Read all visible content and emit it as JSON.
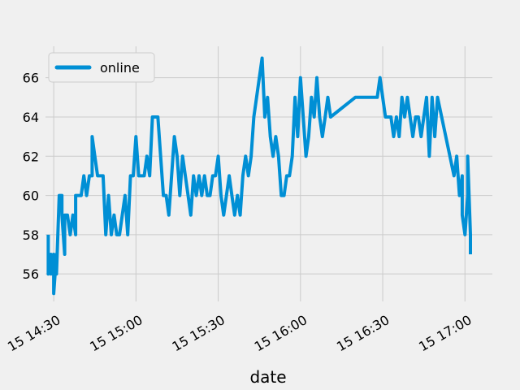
{
  "chart_data": {
    "type": "line",
    "title": "",
    "xlabel": "date",
    "ylabel": "",
    "x_type": "datetime",
    "x_tick_labels": [
      "15 14:30",
      "15 15:00",
      "15 15:30",
      "15 16:00",
      "15 16:30",
      "15 17:00"
    ],
    "x_ticks": [
      "14:30",
      "15:00",
      "15:30",
      "16:00",
      "16:30",
      "17:00"
    ],
    "xlim": [
      "14:27",
      "17:10"
    ],
    "y_ticks": [
      56,
      58,
      60,
      62,
      64,
      66
    ],
    "ylim": [
      54.6,
      67.6
    ],
    "grid": true,
    "legend": {
      "position": "top-left"
    },
    "colors": {
      "online": "#008fd5",
      "background": "#f0f0f0",
      "grid": "#cbcbcb"
    },
    "series": [
      {
        "name": "online",
        "points": [
          [
            "14:28",
            58
          ],
          [
            "14:28",
            56
          ],
          [
            "14:29",
            57
          ],
          [
            "14:29",
            56
          ],
          [
            "14:30",
            57
          ],
          [
            "14:30",
            55
          ],
          [
            "14:31",
            57
          ],
          [
            "14:31",
            56
          ],
          [
            "14:32",
            60
          ],
          [
            "14:33",
            60
          ],
          [
            "14:33",
            59
          ],
          [
            "14:34",
            57
          ],
          [
            "14:34",
            59
          ],
          [
            "14:35",
            59
          ],
          [
            "14:36",
            58
          ],
          [
            "14:37",
            59
          ],
          [
            "14:38",
            58
          ],
          [
            "14:38",
            60
          ],
          [
            "14:40",
            60
          ],
          [
            "14:41",
            61
          ],
          [
            "14:42",
            60
          ],
          [
            "14:43",
            61
          ],
          [
            "14:44",
            61
          ],
          [
            "14:44",
            63
          ],
          [
            "14:45",
            62
          ],
          [
            "14:46",
            61
          ],
          [
            "14:48",
            61
          ],
          [
            "14:49",
            58
          ],
          [
            "14:50",
            60
          ],
          [
            "14:51",
            58
          ],
          [
            "14:52",
            59
          ],
          [
            "14:53",
            58
          ],
          [
            "14:54",
            58
          ],
          [
            "14:55",
            59
          ],
          [
            "14:56",
            60
          ],
          [
            "14:57",
            58
          ],
          [
            "14:58",
            61
          ],
          [
            "14:59",
            61
          ],
          [
            "15:00",
            63
          ],
          [
            "15:01",
            61
          ],
          [
            "15:03",
            61
          ],
          [
            "15:04",
            62
          ],
          [
            "15:05",
            61
          ],
          [
            "15:06",
            64
          ],
          [
            "15:08",
            64
          ],
          [
            "15:09",
            62
          ],
          [
            "15:10",
            60
          ],
          [
            "15:11",
            60
          ],
          [
            "15:12",
            59
          ],
          [
            "15:13",
            61
          ],
          [
            "15:14",
            63
          ],
          [
            "15:15",
            62
          ],
          [
            "15:16",
            60
          ],
          [
            "15:17",
            62
          ],
          [
            "15:18",
            61
          ],
          [
            "15:19",
            60
          ],
          [
            "15:20",
            59
          ],
          [
            "15:21",
            61
          ],
          [
            "15:22",
            60
          ],
          [
            "15:23",
            61
          ],
          [
            "15:24",
            60
          ],
          [
            "15:25",
            61
          ],
          [
            "15:26",
            60
          ],
          [
            "15:27",
            60
          ],
          [
            "15:28",
            61
          ],
          [
            "15:29",
            61
          ],
          [
            "15:30",
            62
          ],
          [
            "15:31",
            60
          ],
          [
            "15:32",
            59
          ],
          [
            "15:33",
            60
          ],
          [
            "15:34",
            61
          ],
          [
            "15:35",
            60
          ],
          [
            "15:36",
            59
          ],
          [
            "15:37",
            60
          ],
          [
            "15:38",
            59
          ],
          [
            "15:39",
            61
          ],
          [
            "15:40",
            62
          ],
          [
            "15:41",
            61
          ],
          [
            "15:42",
            62
          ],
          [
            "15:43",
            64
          ],
          [
            "15:44",
            65
          ],
          [
            "15:45",
            66
          ],
          [
            "15:46",
            67
          ],
          [
            "15:47",
            64
          ],
          [
            "15:48",
            65
          ],
          [
            "15:49",
            63
          ],
          [
            "15:50",
            62
          ],
          [
            "15:51",
            63
          ],
          [
            "15:52",
            62
          ],
          [
            "15:53",
            60
          ],
          [
            "15:54",
            60
          ],
          [
            "15:55",
            61
          ],
          [
            "15:56",
            61
          ],
          [
            "15:57",
            62
          ],
          [
            "15:58",
            65
          ],
          [
            "15:59",
            63
          ],
          [
            "16:00",
            66
          ],
          [
            "16:01",
            64
          ],
          [
            "16:02",
            62
          ],
          [
            "16:03",
            63
          ],
          [
            "16:04",
            65
          ],
          [
            "16:05",
            64
          ],
          [
            "16:06",
            66
          ],
          [
            "16:07",
            64
          ],
          [
            "16:08",
            63
          ],
          [
            "16:09",
            64
          ],
          [
            "16:10",
            65
          ],
          [
            "16:11",
            64
          ],
          [
            "16:20",
            65
          ],
          [
            "16:28",
            65
          ],
          [
            "16:29",
            66
          ],
          [
            "16:30",
            65
          ],
          [
            "16:31",
            64
          ],
          [
            "16:33",
            64
          ],
          [
            "16:34",
            63
          ],
          [
            "16:35",
            64
          ],
          [
            "16:36",
            63
          ],
          [
            "16:37",
            65
          ],
          [
            "16:38",
            64
          ],
          [
            "16:39",
            65
          ],
          [
            "16:40",
            64
          ],
          [
            "16:41",
            63
          ],
          [
            "16:42",
            64
          ],
          [
            "16:43",
            64
          ],
          [
            "16:44",
            63
          ],
          [
            "16:45",
            64
          ],
          [
            "16:46",
            65
          ],
          [
            "16:47",
            62
          ],
          [
            "16:48",
            65
          ],
          [
            "16:49",
            63
          ],
          [
            "16:50",
            65
          ],
          [
            "16:56",
            61
          ],
          [
            "16:57",
            62
          ],
          [
            "16:58",
            60
          ],
          [
            "16:59",
            61
          ],
          [
            "16:59",
            59
          ],
          [
            "17:00",
            58
          ],
          [
            "17:01",
            60
          ],
          [
            "17:01",
            62
          ],
          [
            "17:02",
            58
          ],
          [
            "17:02",
            57
          ]
        ]
      }
    ]
  }
}
